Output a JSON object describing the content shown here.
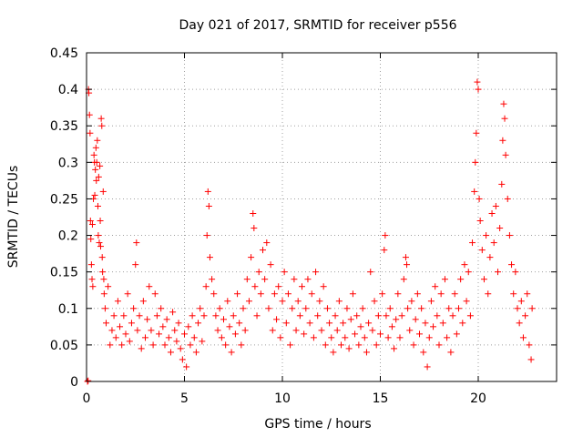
{
  "chart_data": {
    "type": "scatter",
    "title": "Day 021 of 2017, SRMTID for receiver p556",
    "xlabel": "GPS time / hours",
    "ylabel": "SRMTID / TECUs",
    "xlim": [
      0,
      24
    ],
    "ylim": [
      0,
      0.45
    ],
    "xticks": [
      0,
      5,
      10,
      15,
      20
    ],
    "xtick_labels": [
      "0",
      "5",
      "10",
      "15",
      "20"
    ],
    "yticks": [
      0,
      0.05,
      0.1,
      0.15,
      0.2,
      0.25,
      0.3,
      0.35,
      0.4,
      0.45
    ],
    "ytick_labels": [
      "0",
      "0.05",
      "0.1",
      "0.15",
      "0.2",
      "0.25",
      "0.3",
      "0.35",
      "0.4",
      "0.45"
    ],
    "grid": true,
    "marker": "+",
    "color": "#ff0000",
    "series": [
      {
        "name": "SRMTID",
        "points": [
          [
            0.05,
            0.0
          ],
          [
            0.08,
            0.001
          ],
          [
            0.1,
            0.4
          ],
          [
            0.12,
            0.395
          ],
          [
            0.15,
            0.365
          ],
          [
            0.18,
            0.34
          ],
          [
            0.2,
            0.22
          ],
          [
            0.22,
            0.195
          ],
          [
            0.25,
            0.16
          ],
          [
            0.28,
            0.14
          ],
          [
            0.3,
            0.215
          ],
          [
            0.32,
            0.13
          ],
          [
            0.35,
            0.25
          ],
          [
            0.38,
            0.31
          ],
          [
            0.4,
            0.3
          ],
          [
            0.42,
            0.255
          ],
          [
            0.45,
            0.29
          ],
          [
            0.48,
            0.32
          ],
          [
            0.5,
            0.275
          ],
          [
            0.52,
            0.3
          ],
          [
            0.55,
            0.33
          ],
          [
            0.58,
            0.24
          ],
          [
            0.6,
            0.2
          ],
          [
            0.62,
            0.28
          ],
          [
            0.65,
            0.19
          ],
          [
            0.68,
            0.295
          ],
          [
            0.7,
            0.22
          ],
          [
            0.72,
            0.185
          ],
          [
            0.75,
            0.36
          ],
          [
            0.78,
            0.35
          ],
          [
            0.8,
            0.17
          ],
          [
            0.82,
            0.15
          ],
          [
            0.85,
            0.26
          ],
          [
            0.88,
            0.14
          ],
          [
            0.9,
            0.12
          ],
          [
            0.95,
            0.1
          ],
          [
            1.0,
            0.08
          ],
          [
            1.1,
            0.13
          ],
          [
            1.2,
            0.05
          ],
          [
            1.3,
            0.07
          ],
          [
            1.4,
            0.09
          ],
          [
            1.5,
            0.06
          ],
          [
            1.6,
            0.11
          ],
          [
            1.7,
            0.075
          ],
          [
            1.8,
            0.05
          ],
          [
            1.9,
            0.09
          ],
          [
            2.0,
            0.065
          ],
          [
            2.1,
            0.12
          ],
          [
            2.2,
            0.055
          ],
          [
            2.3,
            0.08
          ],
          [
            2.4,
            0.1
          ],
          [
            2.5,
            0.16
          ],
          [
            2.55,
            0.19
          ],
          [
            2.6,
            0.07
          ],
          [
            2.7,
            0.09
          ],
          [
            2.8,
            0.045
          ],
          [
            2.9,
            0.11
          ],
          [
            3.0,
            0.06
          ],
          [
            3.1,
            0.085
          ],
          [
            3.2,
            0.13
          ],
          [
            3.3,
            0.07
          ],
          [
            3.4,
            0.05
          ],
          [
            3.5,
            0.12
          ],
          [
            3.6,
            0.09
          ],
          [
            3.7,
            0.065
          ],
          [
            3.8,
            0.1
          ],
          [
            3.9,
            0.075
          ],
          [
            4.0,
            0.05
          ],
          [
            4.1,
            0.085
          ],
          [
            4.2,
            0.06
          ],
          [
            4.3,
            0.04
          ],
          [
            4.4,
            0.095
          ],
          [
            4.5,
            0.07
          ],
          [
            4.6,
            0.055
          ],
          [
            4.7,
            0.08
          ],
          [
            4.8,
            0.045
          ],
          [
            4.9,
            0.03
          ],
          [
            5.0,
            0.065
          ],
          [
            5.1,
            0.02
          ],
          [
            5.2,
            0.075
          ],
          [
            5.3,
            0.05
          ],
          [
            5.4,
            0.09
          ],
          [
            5.5,
            0.06
          ],
          [
            5.6,
            0.04
          ],
          [
            5.7,
            0.08
          ],
          [
            5.8,
            0.1
          ],
          [
            5.9,
            0.055
          ],
          [
            6.0,
            0.09
          ],
          [
            6.1,
            0.13
          ],
          [
            6.15,
            0.2
          ],
          [
            6.2,
            0.26
          ],
          [
            6.25,
            0.24
          ],
          [
            6.3,
            0.17
          ],
          [
            6.4,
            0.14
          ],
          [
            6.5,
            0.12
          ],
          [
            6.6,
            0.09
          ],
          [
            6.7,
            0.07
          ],
          [
            6.8,
            0.1
          ],
          [
            6.9,
            0.06
          ],
          [
            7.0,
            0.085
          ],
          [
            7.1,
            0.05
          ],
          [
            7.2,
            0.11
          ],
          [
            7.3,
            0.075
          ],
          [
            7.4,
            0.04
          ],
          [
            7.5,
            0.09
          ],
          [
            7.6,
            0.065
          ],
          [
            7.7,
            0.12
          ],
          [
            7.8,
            0.08
          ],
          [
            7.9,
            0.05
          ],
          [
            8.0,
            0.1
          ],
          [
            8.1,
            0.07
          ],
          [
            8.2,
            0.14
          ],
          [
            8.3,
            0.11
          ],
          [
            8.4,
            0.17
          ],
          [
            8.5,
            0.23
          ],
          [
            8.55,
            0.21
          ],
          [
            8.6,
            0.13
          ],
          [
            8.7,
            0.09
          ],
          [
            8.8,
            0.15
          ],
          [
            8.9,
            0.12
          ],
          [
            9.0,
            0.18
          ],
          [
            9.1,
            0.14
          ],
          [
            9.2,
            0.19
          ],
          [
            9.3,
            0.1
          ],
          [
            9.4,
            0.16
          ],
          [
            9.5,
            0.07
          ],
          [
            9.6,
            0.12
          ],
          [
            9.7,
            0.085
          ],
          [
            9.8,
            0.13
          ],
          [
            9.9,
            0.06
          ],
          [
            10.0,
            0.11
          ],
          [
            10.1,
            0.15
          ],
          [
            10.2,
            0.08
          ],
          [
            10.3,
            0.12
          ],
          [
            10.4,
            0.05
          ],
          [
            10.5,
            0.1
          ],
          [
            10.6,
            0.14
          ],
          [
            10.7,
            0.07
          ],
          [
            10.8,
            0.11
          ],
          [
            10.9,
            0.09
          ],
          [
            11.0,
            0.13
          ],
          [
            11.1,
            0.065
          ],
          [
            11.2,
            0.1
          ],
          [
            11.3,
            0.14
          ],
          [
            11.4,
            0.08
          ],
          [
            11.5,
            0.12
          ],
          [
            11.6,
            0.06
          ],
          [
            11.7,
            0.15
          ],
          [
            11.8,
            0.09
          ],
          [
            11.9,
            0.11
          ],
          [
            12.0,
            0.07
          ],
          [
            12.1,
            0.13
          ],
          [
            12.2,
            0.05
          ],
          [
            12.3,
            0.1
          ],
          [
            12.4,
            0.08
          ],
          [
            12.5,
            0.06
          ],
          [
            12.6,
            0.04
          ],
          [
            12.7,
            0.09
          ],
          [
            12.8,
            0.07
          ],
          [
            12.9,
            0.11
          ],
          [
            13.0,
            0.05
          ],
          [
            13.1,
            0.08
          ],
          [
            13.2,
            0.06
          ],
          [
            13.3,
            0.1
          ],
          [
            13.4,
            0.045
          ],
          [
            13.5,
            0.085
          ],
          [
            13.6,
            0.12
          ],
          [
            13.7,
            0.065
          ],
          [
            13.8,
            0.09
          ],
          [
            13.9,
            0.05
          ],
          [
            14.0,
            0.075
          ],
          [
            14.1,
            0.1
          ],
          [
            14.2,
            0.06
          ],
          [
            14.3,
            0.04
          ],
          [
            14.4,
            0.08
          ],
          [
            14.5,
            0.15
          ],
          [
            14.6,
            0.07
          ],
          [
            14.7,
            0.11
          ],
          [
            14.8,
            0.05
          ],
          [
            14.9,
            0.09
          ],
          [
            15.0,
            0.065
          ],
          [
            15.1,
            0.12
          ],
          [
            15.2,
            0.18
          ],
          [
            15.25,
            0.2
          ],
          [
            15.3,
            0.09
          ],
          [
            15.4,
            0.06
          ],
          [
            15.5,
            0.1
          ],
          [
            15.6,
            0.075
          ],
          [
            15.7,
            0.045
          ],
          [
            15.8,
            0.085
          ],
          [
            15.9,
            0.12
          ],
          [
            16.0,
            0.06
          ],
          [
            16.1,
            0.09
          ],
          [
            16.2,
            0.14
          ],
          [
            16.3,
            0.17
          ],
          [
            16.35,
            0.16
          ],
          [
            16.4,
            0.1
          ],
          [
            16.5,
            0.07
          ],
          [
            16.6,
            0.11
          ],
          [
            16.7,
            0.05
          ],
          [
            16.8,
            0.085
          ],
          [
            16.9,
            0.12
          ],
          [
            17.0,
            0.065
          ],
          [
            17.1,
            0.1
          ],
          [
            17.2,
            0.04
          ],
          [
            17.3,
            0.08
          ],
          [
            17.4,
            0.02
          ],
          [
            17.5,
            0.06
          ],
          [
            17.6,
            0.11
          ],
          [
            17.7,
            0.075
          ],
          [
            17.8,
            0.13
          ],
          [
            17.9,
            0.09
          ],
          [
            18.0,
            0.05
          ],
          [
            18.1,
            0.12
          ],
          [
            18.2,
            0.08
          ],
          [
            18.3,
            0.14
          ],
          [
            18.4,
            0.06
          ],
          [
            18.5,
            0.1
          ],
          [
            18.6,
            0.04
          ],
          [
            18.7,
            0.09
          ],
          [
            18.8,
            0.12
          ],
          [
            18.9,
            0.065
          ],
          [
            19.0,
            0.1
          ],
          [
            19.1,
            0.14
          ],
          [
            19.2,
            0.08
          ],
          [
            19.3,
            0.16
          ],
          [
            19.4,
            0.11
          ],
          [
            19.5,
            0.15
          ],
          [
            19.6,
            0.09
          ],
          [
            19.7,
            0.19
          ],
          [
            19.8,
            0.26
          ],
          [
            19.85,
            0.3
          ],
          [
            19.9,
            0.34
          ],
          [
            19.95,
            0.41
          ],
          [
            20.0,
            0.4
          ],
          [
            20.05,
            0.25
          ],
          [
            20.1,
            0.22
          ],
          [
            20.2,
            0.18
          ],
          [
            20.3,
            0.14
          ],
          [
            20.4,
            0.2
          ],
          [
            20.5,
            0.12
          ],
          [
            20.6,
            0.17
          ],
          [
            20.7,
            0.23
          ],
          [
            20.8,
            0.19
          ],
          [
            20.9,
            0.24
          ],
          [
            21.0,
            0.15
          ],
          [
            21.1,
            0.21
          ],
          [
            21.2,
            0.27
          ],
          [
            21.25,
            0.33
          ],
          [
            21.3,
            0.38
          ],
          [
            21.35,
            0.36
          ],
          [
            21.4,
            0.31
          ],
          [
            21.5,
            0.25
          ],
          [
            21.6,
            0.2
          ],
          [
            21.7,
            0.16
          ],
          [
            21.8,
            0.12
          ],
          [
            21.9,
            0.15
          ],
          [
            22.0,
            0.1
          ],
          [
            22.1,
            0.08
          ],
          [
            22.2,
            0.11
          ],
          [
            22.3,
            0.06
          ],
          [
            22.4,
            0.09
          ],
          [
            22.5,
            0.12
          ],
          [
            22.6,
            0.05
          ],
          [
            22.7,
            0.03
          ],
          [
            22.75,
            0.1
          ]
        ]
      }
    ]
  }
}
